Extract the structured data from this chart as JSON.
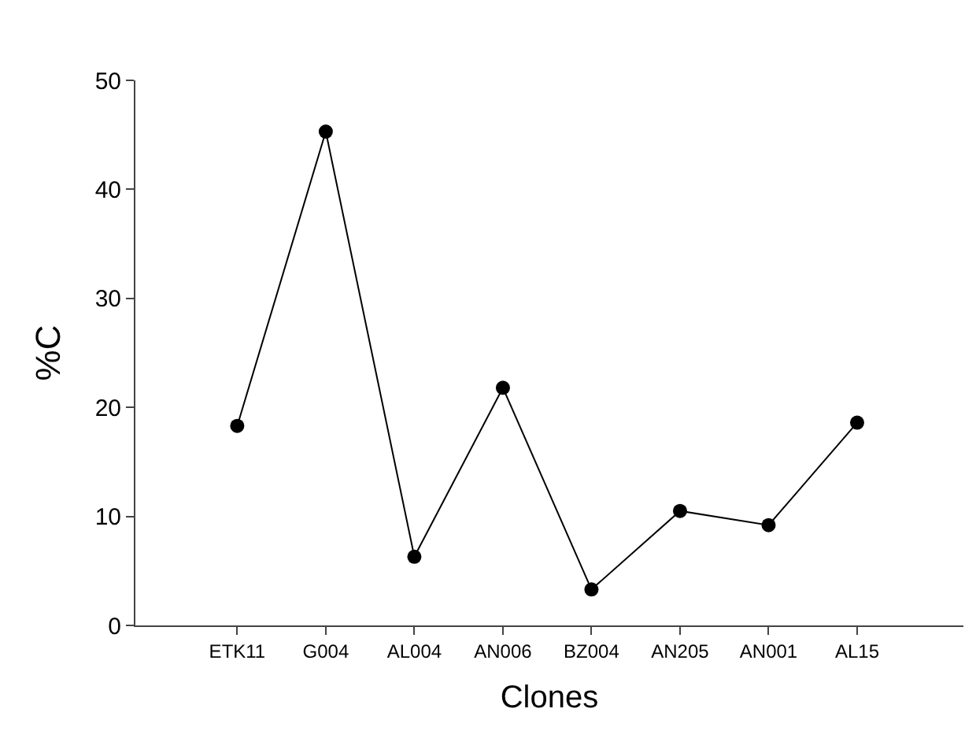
{
  "chart_data": {
    "type": "line",
    "xlabel": "Clones",
    "ylabel": "%C",
    "categories": [
      "ETK11",
      "G004",
      "AL004",
      "AN006",
      "BZ004",
      "AN205",
      "AN001",
      "AL15"
    ],
    "series": [
      {
        "color": "#000000",
        "values": [
          18.3,
          45.3,
          6.3,
          21.8,
          3.3,
          10.5,
          9.2,
          18.6
        ]
      }
    ],
    "ylim": [
      0,
      50
    ],
    "yticks": [
      0,
      10,
      20,
      30,
      40,
      50
    ],
    "marker": "circle",
    "line_style": "solid"
  }
}
